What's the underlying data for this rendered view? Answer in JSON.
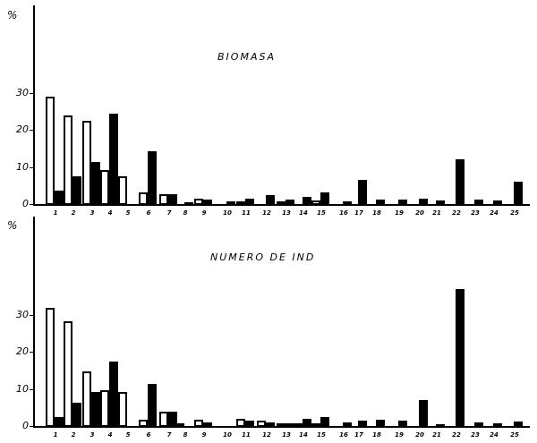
{
  "figure": {
    "y_axis_unit": "%",
    "x_categories": [
      "1",
      "2",
      "3",
      "4",
      "5",
      "6",
      "7",
      "8",
      "9",
      "10",
      "11",
      "12",
      "13",
      "14",
      "15",
      "16",
      "17",
      "18",
      "19",
      "20",
      "21",
      "22",
      "23",
      "24",
      "25"
    ]
  },
  "chart_data": [
    {
      "type": "bar",
      "title": "BIOMASA",
      "ylabel": "%",
      "xlabel": "",
      "yticks": [
        0,
        10,
        20,
        30
      ],
      "ylim": [
        0,
        35
      ],
      "grid": false,
      "legend": null,
      "categories": [
        "1",
        "2",
        "3",
        "4",
        "5",
        "6",
        "7",
        "8",
        "9",
        "10",
        "11",
        "12",
        "13",
        "14",
        "15",
        "16",
        "17",
        "18",
        "19",
        "20",
        "21",
        "22",
        "23",
        "24",
        "25"
      ],
      "series": [
        {
          "name": "open bars",
          "style": "outlined",
          "values": [
            29,
            24,
            22.5,
            9.3,
            7.6,
            3.2,
            2.7,
            0,
            1.4,
            0,
            0.7,
            0,
            0.6,
            0,
            0.9,
            0,
            0,
            0,
            0,
            0,
            0,
            0,
            0,
            0,
            0
          ]
        },
        {
          "name": "filled bars",
          "style": "solid",
          "values": [
            3.7,
            7.5,
            11.4,
            24.4,
            0,
            14.4,
            2.7,
            0.6,
            1.1,
            0.8,
            1.5,
            2.5,
            1.3,
            1.9,
            3.2,
            0.7,
            6.5,
            1.2,
            1.2,
            1.4,
            0.9,
            12.2,
            1.1,
            0.9,
            6.0
          ]
        }
      ]
    },
    {
      "type": "bar",
      "title": "NUMERO DE IND",
      "ylabel": "%",
      "xlabel": "",
      "yticks": [
        0,
        10,
        20,
        30
      ],
      "ylim": [
        0,
        37
      ],
      "grid": false,
      "legend": null,
      "categories": [
        "1",
        "2",
        "3",
        "4",
        "5",
        "6",
        "7",
        "8",
        "9",
        "10",
        "11",
        "12",
        "13",
        "14",
        "15",
        "16",
        "17",
        "18",
        "19",
        "20",
        "21",
        "22",
        "23",
        "24",
        "25"
      ],
      "series": [
        {
          "name": "open bars",
          "style": "outlined",
          "values": [
            32,
            28.4,
            14.8,
            9.6,
            9.1,
            1.8,
            3.9,
            0.7,
            1.8,
            0,
            1.9,
            1.5,
            0.5,
            0.6,
            0.7,
            0,
            0,
            0,
            0,
            0,
            0,
            0,
            0,
            0,
            0
          ]
        },
        {
          "name": "filled bars",
          "style": "solid",
          "values": [
            2.5,
            6.3,
            9.3,
            17.4,
            0,
            11.5,
            3.9,
            0,
            1.0,
            0,
            1.4,
            1.0,
            0.8,
            2.0,
            2.5,
            1.0,
            1.4,
            1.7,
            1.4,
            7.0,
            0.5,
            37,
            0.9,
            0.8,
            1.2
          ]
        }
      ]
    }
  ]
}
